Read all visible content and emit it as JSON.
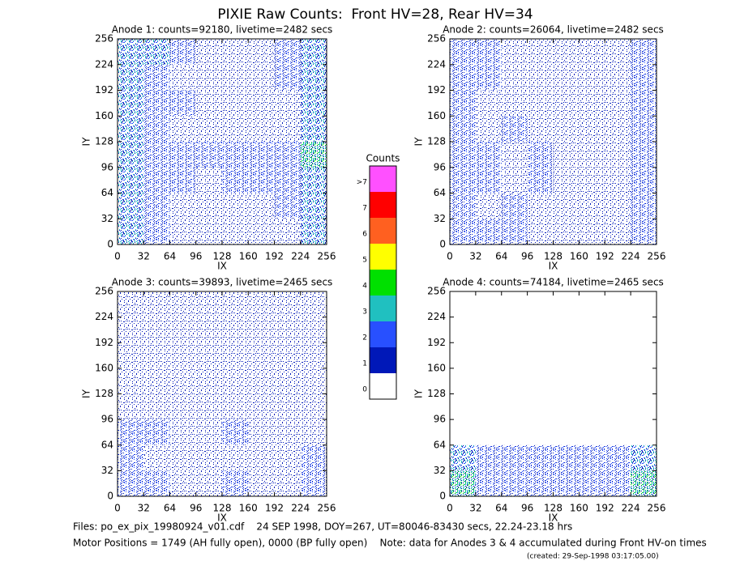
{
  "title": "PIXIE Raw Counts:  Front HV=28, Rear HV=34",
  "chart_data": [
    {
      "type": "heatmap",
      "title": "Anode 1: counts=92180, livetime=2482 secs",
      "xlabel": "IX",
      "ylabel": "IY",
      "xlim": [
        0,
        256
      ],
      "ylim": [
        0,
        256
      ],
      "xticks": [
        0,
        32,
        64,
        96,
        128,
        160,
        192,
        224,
        256
      ],
      "yticks": [
        0,
        32,
        64,
        96,
        128,
        160,
        192,
        224,
        256
      ],
      "z": [
        [
          3,
          2,
          1,
          1,
          1,
          1,
          1,
          3
        ],
        [
          3,
          2,
          1,
          1,
          1,
          1,
          2,
          3
        ],
        [
          3,
          2,
          2,
          1,
          2,
          2,
          2,
          3
        ],
        [
          3,
          2,
          2,
          2,
          2,
          2,
          2,
          4
        ],
        [
          3,
          2,
          1,
          1,
          1,
          1,
          1,
          3
        ],
        [
          3,
          2,
          2,
          1,
          1,
          1,
          1,
          3
        ],
        [
          3,
          2,
          1,
          1,
          1,
          1,
          2,
          3
        ],
        [
          3,
          3,
          2,
          1,
          1,
          1,
          2,
          3
        ]
      ]
    },
    {
      "type": "heatmap",
      "title": "Anode 2: counts=26064, livetime=2482 secs",
      "xlabel": "IX",
      "ylabel": "IY",
      "xlim": [
        0,
        256
      ],
      "ylim": [
        0,
        256
      ],
      "xticks": [
        0,
        32,
        64,
        96,
        128,
        160,
        192,
        224,
        256
      ],
      "yticks": [
        0,
        32,
        64,
        96,
        128,
        160,
        192,
        224,
        256
      ],
      "z": [
        [
          2,
          2,
          2,
          1,
          1,
          1,
          1,
          2
        ],
        [
          2,
          1,
          2,
          1,
          1,
          1,
          1,
          2
        ],
        [
          2,
          2,
          1,
          2,
          1,
          1,
          1,
          2
        ],
        [
          2,
          2,
          1,
          2,
          1,
          1,
          1,
          2
        ],
        [
          2,
          1,
          2,
          1,
          1,
          1,
          1,
          2
        ],
        [
          2,
          1,
          1,
          1,
          1,
          1,
          1,
          2
        ],
        [
          2,
          2,
          1,
          1,
          1,
          1,
          1,
          2
        ],
        [
          2,
          2,
          1,
          1,
          1,
          1,
          1,
          2
        ]
      ]
    },
    {
      "type": "heatmap",
      "title": "Anode 3: counts=39893, livetime=2465 secs",
      "xlabel": "IX",
      "ylabel": "IY",
      "xlim": [
        0,
        256
      ],
      "ylim": [
        0,
        256
      ],
      "xticks": [
        0,
        32,
        64,
        96,
        128,
        160,
        192,
        224,
        256
      ],
      "yticks": [
        0,
        32,
        64,
        96,
        128,
        160,
        192,
        224,
        256
      ],
      "z": [
        [
          2,
          2,
          1,
          1,
          2,
          1,
          1,
          2
        ],
        [
          2,
          1,
          1,
          1,
          1,
          1,
          1,
          2
        ],
        [
          2,
          2,
          1,
          1,
          2,
          1,
          1,
          1
        ],
        [
          1,
          1,
          1,
          1,
          1,
          1,
          1,
          1
        ],
        [
          1,
          1,
          1,
          1,
          1,
          1,
          1,
          1
        ],
        [
          1,
          1,
          1,
          1,
          1,
          1,
          1,
          1
        ],
        [
          1,
          1,
          1,
          1,
          1,
          1,
          1,
          1
        ],
        [
          1,
          1,
          1,
          1,
          1,
          1,
          1,
          1
        ]
      ]
    },
    {
      "type": "heatmap",
      "title": "Anode 4: counts=74184, livetime=2465 secs",
      "xlabel": "IX",
      "ylabel": "IY",
      "xlim": [
        0,
        256
      ],
      "ylim": [
        0,
        256
      ],
      "xticks": [
        0,
        32,
        64,
        96,
        128,
        160,
        192,
        224,
        256
      ],
      "yticks": [
        0,
        32,
        64,
        96,
        128,
        160,
        192,
        224,
        256
      ],
      "z": [
        [
          4,
          2,
          2,
          2,
          2,
          2,
          2,
          4
        ],
        [
          3,
          2,
          2,
          2,
          2,
          2,
          2,
          3
        ],
        [
          0,
          0,
          0,
          0,
          0,
          0,
          0,
          0
        ],
        [
          0,
          0,
          0,
          0,
          0,
          0,
          0,
          0
        ],
        [
          0,
          0,
          0,
          0,
          0,
          0,
          0,
          0
        ],
        [
          0,
          0,
          0,
          0,
          0,
          0,
          0,
          0
        ],
        [
          0,
          0,
          0,
          0,
          0,
          0,
          0,
          0
        ],
        [
          0,
          0,
          0,
          0,
          0,
          0,
          0,
          0
        ]
      ]
    }
  ],
  "colorbar": {
    "title": "Counts",
    "ticks": [
      0,
      1,
      2,
      3,
      4,
      5,
      6,
      7,
      {
        "value": 8,
        "label": ">7"
      }
    ],
    "colors": [
      "#ffffff",
      "#0018b8",
      "#2850ff",
      "#20c0c0",
      "#00e000",
      "#ffff00",
      "#ff6020",
      "#ff0000",
      "#ff50ff"
    ]
  },
  "footer": [
    "Files: po_ex_pix_19980924_v01.cdf    24 SEP 1998, DOY=267, UT=80046-83430 secs, 22.24-23.18 hrs",
    "Motor Positions = 1749 (AH fully open), 0000 (BP fully open)    Note: data for Anodes 3 & 4 accumulated during Front HV-on times",
    "(created: 29-Sep-1998 03:17:05.00)"
  ]
}
